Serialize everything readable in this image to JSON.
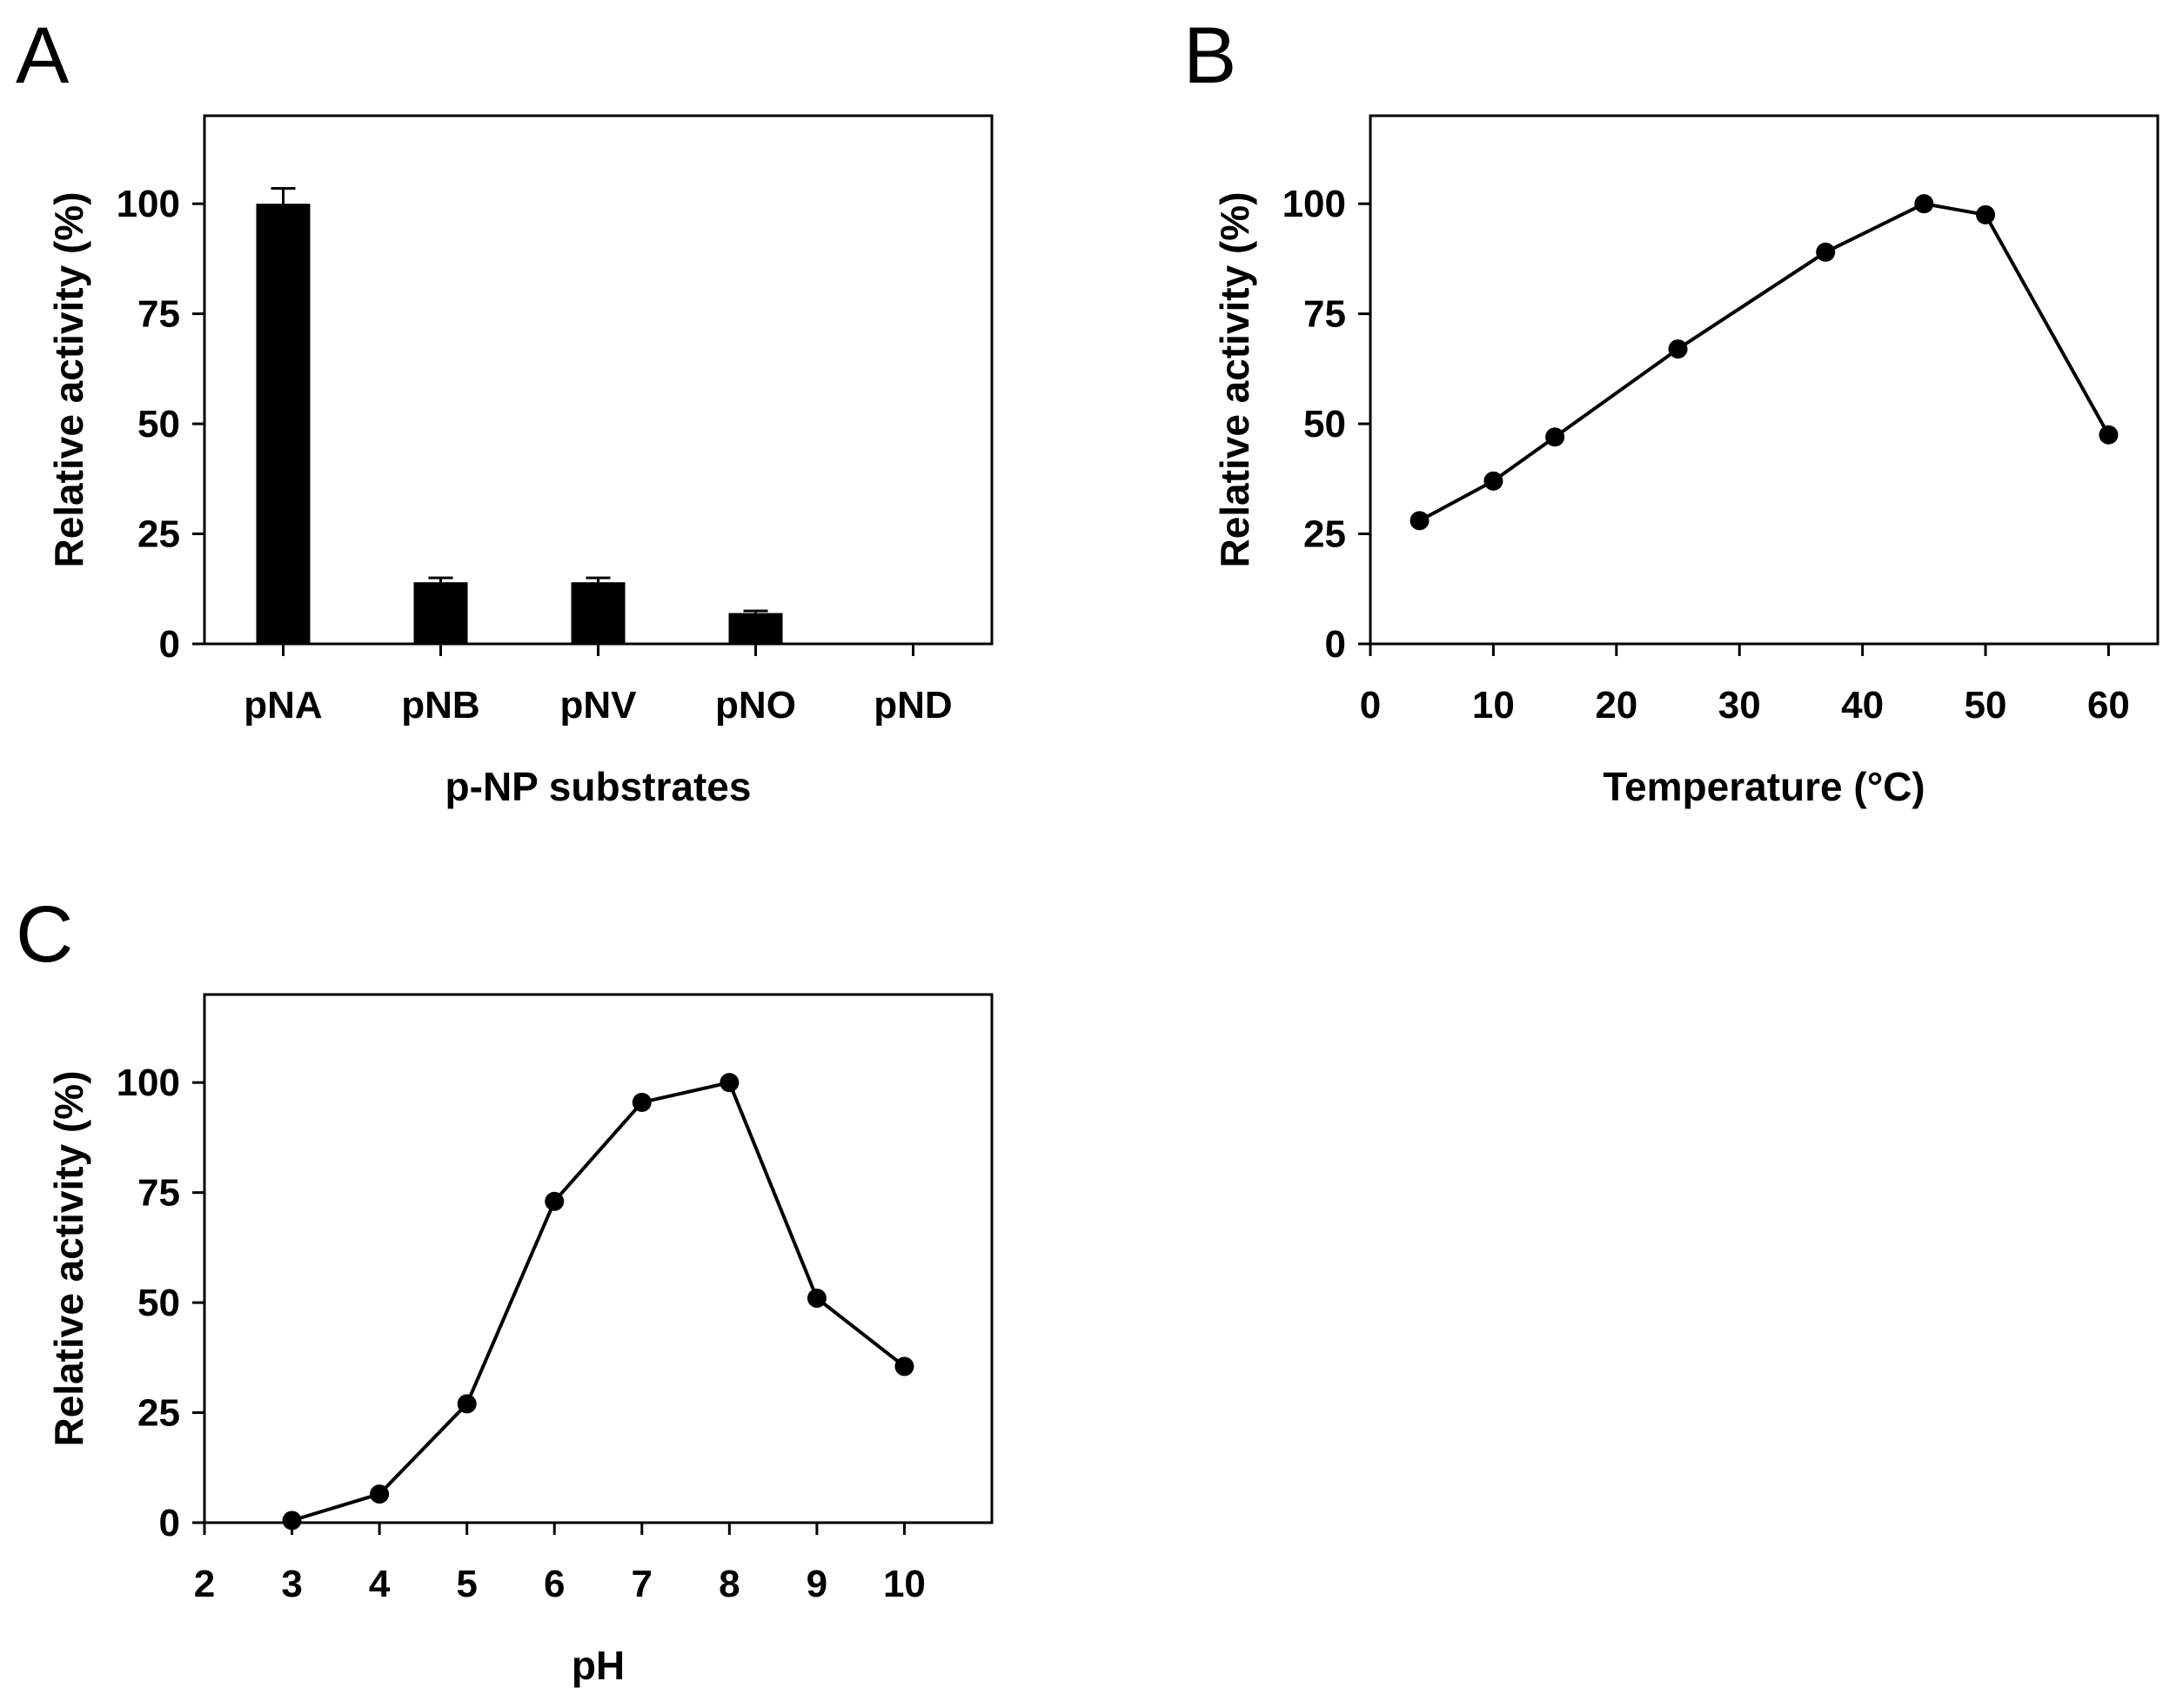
{
  "chart_data": [
    {
      "panel": "A",
      "type": "bar",
      "categories": [
        "pNA",
        "pNB",
        "pNV",
        "pNO",
        "pND"
      ],
      "values": [
        100,
        14,
        14,
        7,
        0
      ],
      "errors": [
        3.5,
        1,
        1,
        0.5,
        0
      ],
      "xlabel": "p-NP substrates",
      "ylabel": "Relative activity (%)",
      "ylim": [
        0,
        120
      ],
      "yticks": [
        0,
        25,
        50,
        75,
        100
      ],
      "grid": false
    },
    {
      "panel": "B",
      "type": "line",
      "x": [
        4,
        10,
        15,
        25,
        37,
        45,
        50,
        60
      ],
      "y": [
        28,
        37,
        47,
        67,
        89,
        100,
        97.5,
        47.5
      ],
      "xlabel": "Temperature (°C)",
      "ylabel": "Relative activity (%)",
      "xlim": [
        0,
        64
      ],
      "ylim": [
        0,
        120
      ],
      "xticks": [
        0,
        10,
        20,
        30,
        40,
        50,
        60
      ],
      "yticks": [
        0,
        25,
        50,
        75,
        100
      ],
      "grid": false
    },
    {
      "panel": "C",
      "type": "line",
      "x": [
        3,
        4,
        5,
        6,
        7,
        8,
        9,
        10
      ],
      "y": [
        0.5,
        6.5,
        27,
        73,
        95.5,
        100,
        51,
        35.5
      ],
      "xlabel": "pH",
      "ylabel": "Relative activity (%)",
      "xlim": [
        2,
        11
      ],
      "ylim": [
        0,
        120
      ],
      "xticks": [
        2,
        3,
        4,
        5,
        6,
        7,
        8,
        9,
        10
      ],
      "yticks": [
        0,
        25,
        50,
        75,
        100
      ],
      "grid": false
    }
  ]
}
